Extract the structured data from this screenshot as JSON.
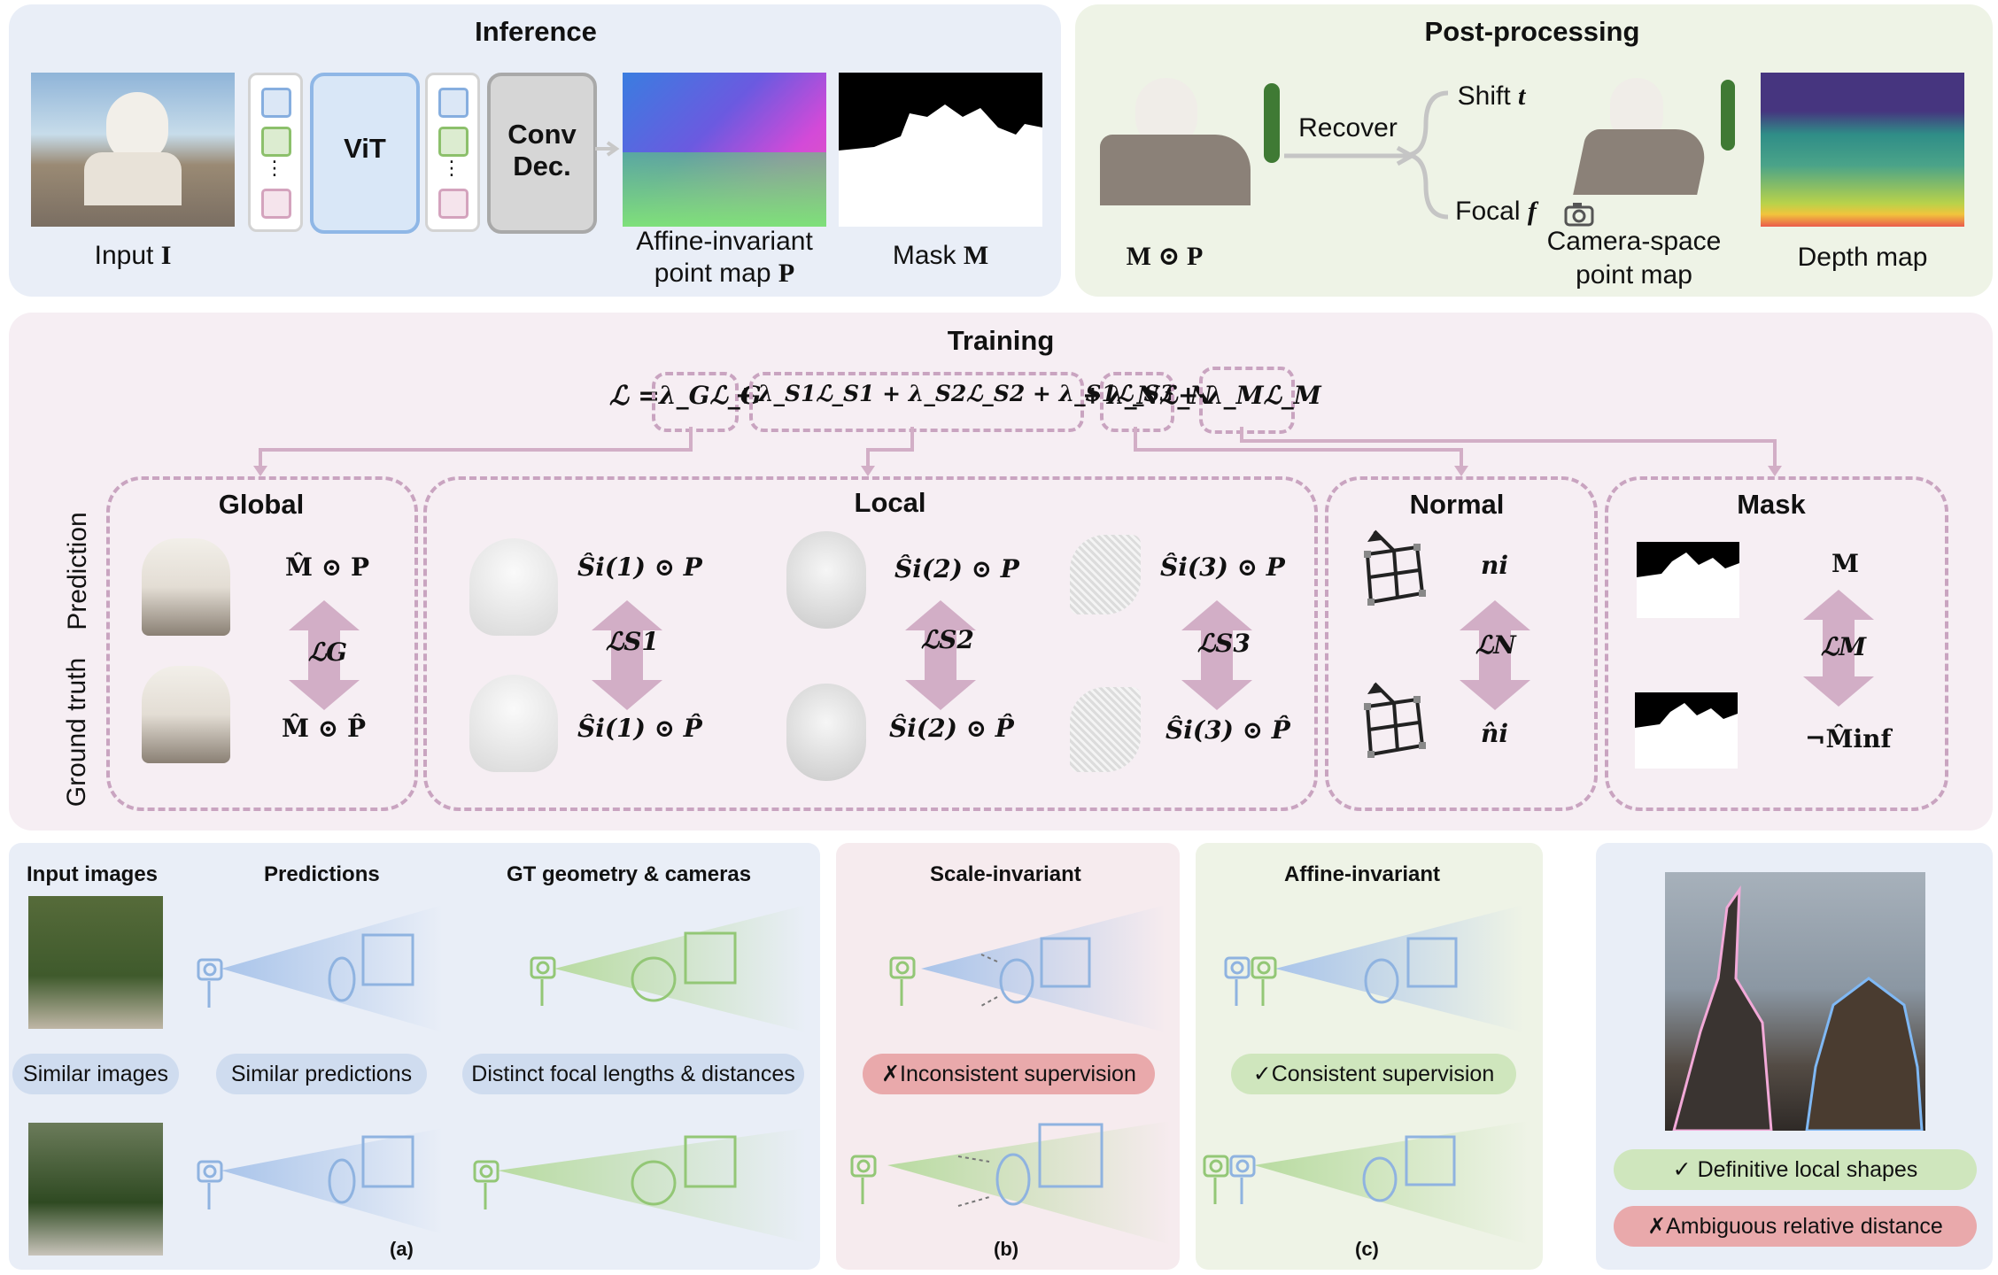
{
  "inference": {
    "title": "Inference",
    "input_label": "Input ",
    "input_symbol": "I",
    "vit_label": "ViT",
    "conv_label_1": "Conv",
    "conv_label_2": "Dec.",
    "affine_label_1": "Affine-invariant",
    "affine_label_2": "point map ",
    "affine_symbol": "P",
    "mask_label": "Mask ",
    "mask_symbol": "M",
    "dots": "⋮"
  },
  "post": {
    "title": "Post-processing",
    "mp_label": "M ⊙ P",
    "recover": "Recover",
    "shift": "Shift ",
    "shift_sym": "t",
    "focal": "Focal ",
    "focal_sym": "f",
    "camera_label_1": "Camera-space",
    "camera_label_2": "point map",
    "depth_label": "Depth map"
  },
  "training": {
    "title": "Training",
    "equation": "ℒ = λ",
    "eq_parts": [
      "ℒ =",
      "λ_Gℒ_G",
      "+",
      "λ_S1ℒ_S1 + λ_S2ℒ_S2 + λ_S1ℒ_S3",
      "+",
      "λ_Nℒ_N",
      "+",
      "λ_Mℒ_M"
    ],
    "side_pred": "Prediction",
    "side_gt": "Ground truth",
    "global": {
      "title": "Global",
      "pred": "M̂ ⊙ P",
      "gt": "M̂ ⊙ P̂",
      "loss": "ℒG"
    },
    "local": {
      "title": "Local",
      "pred": [
        "Ŝi(1) ⊙ P",
        "Ŝi(2) ⊙ P",
        "Ŝi(3) ⊙ P"
      ],
      "gt": [
        "Ŝi(1) ⊙ P̂",
        "Ŝi(2) ⊙ P̂",
        "Ŝi(3) ⊙ P̂"
      ],
      "loss": [
        "ℒS1",
        "ℒS2",
        "ℒS3"
      ]
    },
    "normal": {
      "title": "Normal",
      "pred": "ni",
      "gt": "n̂i",
      "loss": "ℒN"
    },
    "mask": {
      "title": "Mask",
      "pred": "M",
      "gt": "¬M̂inf",
      "loss": "ℒM"
    }
  },
  "bottom": {
    "a": {
      "h1": "Input images",
      "h2": "Predictions",
      "h3": "GT geometry & cameras",
      "p1": "Similar images",
      "p2": "Similar predictions",
      "p3": "Distinct focal lengths & distances",
      "tag": "(a)"
    },
    "b": {
      "title": "Scale-invariant",
      "pill": "✗Inconsistent supervision",
      "tag": "(b)"
    },
    "c": {
      "title": "Affine-invariant",
      "pill": "✓Consistent supervision",
      "tag": "(c)"
    },
    "d": {
      "good": "✓ Definitive local shapes",
      "bad": "✗Ambiguous relative distance"
    }
  },
  "colors": {
    "infer_bg": "#e9eef7",
    "post_bg": "#eef3e6",
    "train_bg": "#f6eef3",
    "blue": "#9dbde6",
    "green": "#a8d18a",
    "pink_arrow": "#d2aec6",
    "red_pill": "#e9a9ab",
    "green_pill": "#cfe6bd"
  }
}
